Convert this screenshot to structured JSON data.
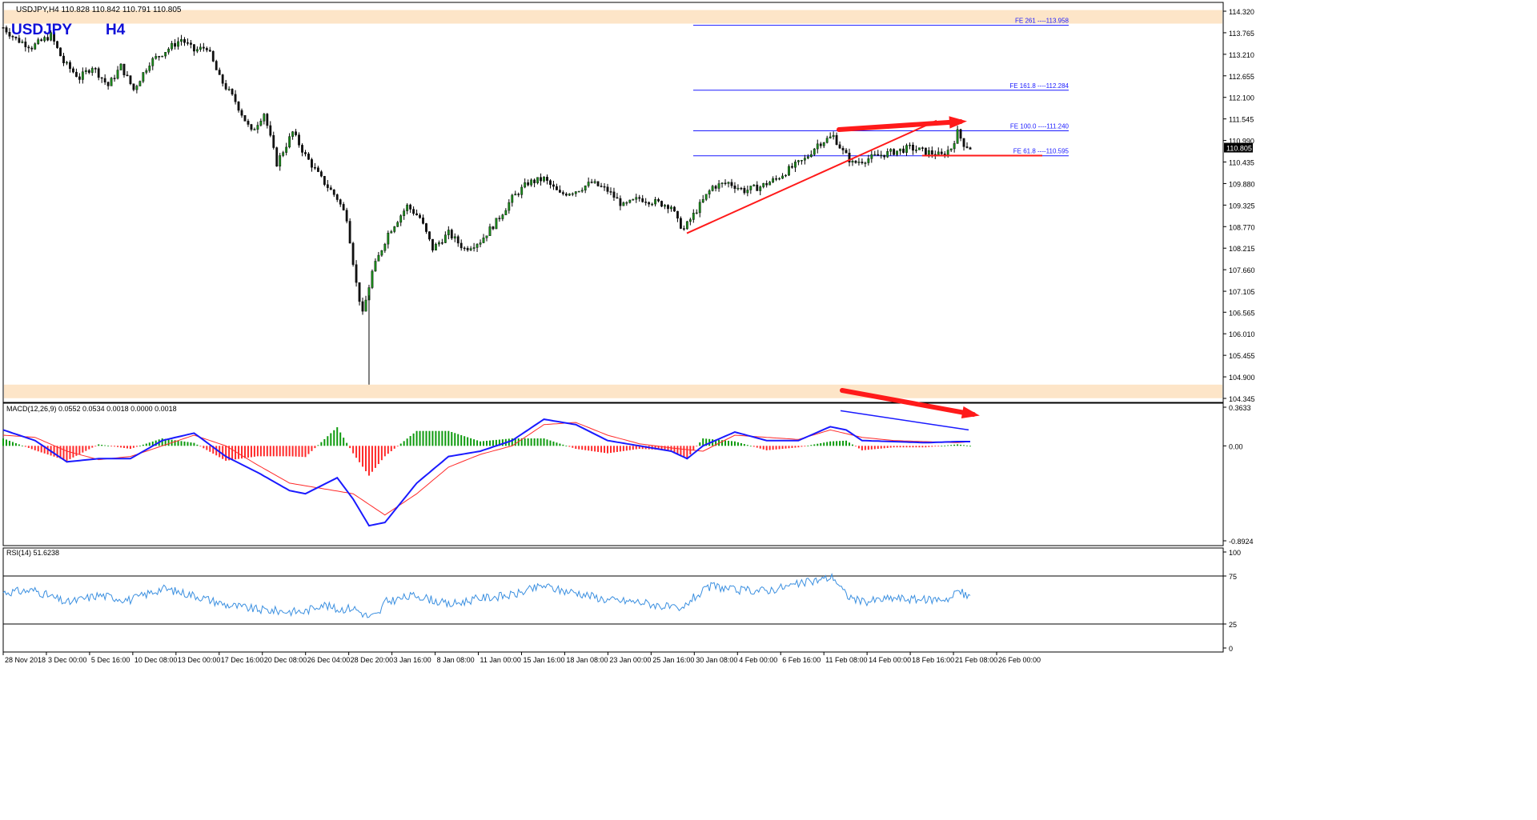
{
  "header": {
    "info": "USDJPY,H4  110.828 110.842 110.791 110.805",
    "symbol": "USDJPY",
    "timeframe": "H4"
  },
  "colors": {
    "bull": "#1a8a1a",
    "bear": "#111111",
    "fe_line": "#1a1aff",
    "red": "#ff1a1a",
    "macd_line": "#1a1aff",
    "signal_line": "#ff2a2a",
    "hist_pos": "#0d9a0d",
    "hist_neg": "#ff2a2a",
    "rsi_line": "#3a8fe0",
    "highlight": "#fde5c8"
  },
  "chart_data": [
    {
      "type": "candlestick",
      "price_axis_ticks": [
        "114.320",
        "113.765",
        "113.210",
        "112.655",
        "112.100",
        "111.545",
        "110.990",
        "110.435",
        "109.880",
        "109.325",
        "108.770",
        "108.215",
        "107.660",
        "107.105",
        "106.565",
        "106.010",
        "105.455",
        "104.900",
        "104.345"
      ],
      "ylim": [
        104.345,
        114.32
      ],
      "current_price": "110.805",
      "time_axis_labels": [
        "28 Nov 2018",
        "3 Dec 00:00",
        "5 Dec 16:00",
        "10 Dec 08:00",
        "13 Dec 00:00",
        "17 Dec 16:00",
        "20 Dec 08:00",
        "26 Dec 04:00",
        "28 Dec 20:00",
        "3 Jan 16:00",
        "8 Jan 08:00",
        "11 Jan 00:00",
        "15 Jan 16:00",
        "18 Jan 08:00",
        "23 Jan 00:00",
        "25 Jan 16:00",
        "30 Jan 08:00",
        "4 Feb 00:00",
        "6 Feb 16:00",
        "11 Feb 08:00",
        "14 Feb 00:00",
        "18 Feb 16:00",
        "21 Feb 08:00",
        "26 Feb 00:00"
      ],
      "path_points": [
        [
          0,
          113.9
        ],
        [
          8,
          113.6
        ],
        [
          18,
          113.4
        ],
        [
          30,
          113.7
        ],
        [
          38,
          113.0
        ],
        [
          48,
          112.6
        ],
        [
          56,
          112.9
        ],
        [
          66,
          112.4
        ],
        [
          74,
          112.9
        ],
        [
          82,
          112.3
        ],
        [
          92,
          113.0
        ],
        [
          102,
          113.3
        ],
        [
          112,
          113.6
        ],
        [
          120,
          113.3
        ],
        [
          128,
          113.4
        ],
        [
          136,
          112.6
        ],
        [
          146,
          112.0
        ],
        [
          156,
          111.2
        ],
        [
          164,
          111.7
        ],
        [
          172,
          110.4
        ],
        [
          182,
          111.2
        ],
        [
          190,
          110.6
        ],
        [
          200,
          110.0
        ],
        [
          210,
          109.5
        ],
        [
          216,
          109.0
        ],
        [
          222,
          107.3
        ],
        [
          226,
          106.5
        ],
        [
          232,
          107.6
        ],
        [
          242,
          108.6
        ],
        [
          254,
          109.3
        ],
        [
          262,
          109.0
        ],
        [
          270,
          108.2
        ],
        [
          280,
          108.6
        ],
        [
          290,
          108.2
        ],
        [
          300,
          108.4
        ],
        [
          310,
          108.9
        ],
        [
          320,
          109.5
        ],
        [
          330,
          109.9
        ],
        [
          340,
          110.0
        ],
        [
          350,
          109.6
        ],
        [
          360,
          109.7
        ],
        [
          370,
          109.9
        ],
        [
          380,
          109.7
        ],
        [
          390,
          109.3
        ],
        [
          400,
          109.5
        ],
        [
          410,
          109.4
        ],
        [
          420,
          109.3
        ],
        [
          424,
          108.9
        ],
        [
          428,
          108.7
        ],
        [
          436,
          109.2
        ],
        [
          446,
          109.8
        ],
        [
          456,
          109.9
        ],
        [
          466,
          109.7
        ],
        [
          476,
          109.8
        ],
        [
          486,
          110.0
        ],
        [
          496,
          110.3
        ],
        [
          504,
          110.5
        ],
        [
          512,
          110.9
        ],
        [
          522,
          111.1
        ],
        [
          528,
          110.7
        ],
        [
          534,
          110.4
        ],
        [
          542,
          110.5
        ],
        [
          550,
          110.6
        ],
        [
          560,
          110.7
        ],
        [
          570,
          110.8
        ],
        [
          580,
          110.7
        ],
        [
          590,
          110.6
        ],
        [
          596,
          110.8
        ],
        [
          600,
          111.2
        ],
        [
          604,
          110.9
        ],
        [
          608,
          110.8
        ]
      ],
      "wicks": [
        [
          230,
          104.7,
          107.0
        ]
      ],
      "support_trendline": [
        [
          108.6,
          111.5
        ],
        [
          108.6,
          111.5
        ]
      ],
      "fibonacci_levels": [
        {
          "label": "FE 261 ----113.958",
          "value": 113.958
        },
        {
          "label": "FE 161.8 ----112.284",
          "value": 112.284
        },
        {
          "label": "FE 100.0 ----111.240",
          "value": 111.24
        },
        {
          "label": "FE 61.8 ----110.595",
          "value": 110.595
        }
      ],
      "highlight_zones": [
        [
          114.0,
          114.35
        ],
        [
          104.35,
          104.7
        ]
      ]
    },
    {
      "type": "line",
      "title": "MACD(12,26,9) 0.0552 0.0534 0.0018 0.0000 0.0018",
      "axis_ticks": [
        "0.3633",
        "0.00",
        "-0.8924"
      ],
      "ylim": [
        -0.8924,
        0.3633
      ],
      "macd_points": [
        [
          0,
          0.15
        ],
        [
          20,
          0.05
        ],
        [
          40,
          -0.15
        ],
        [
          60,
          -0.12
        ],
        [
          80,
          -0.12
        ],
        [
          100,
          0.05
        ],
        [
          120,
          0.12
        ],
        [
          140,
          -0.1
        ],
        [
          160,
          -0.25
        ],
        [
          180,
          -0.42
        ],
        [
          190,
          -0.45
        ],
        [
          210,
          -0.3
        ],
        [
          220,
          -0.5
        ],
        [
          230,
          -0.75
        ],
        [
          240,
          -0.72
        ],
        [
          260,
          -0.35
        ],
        [
          280,
          -0.1
        ],
        [
          300,
          -0.05
        ],
        [
          320,
          0.05
        ],
        [
          340,
          0.25
        ],
        [
          360,
          0.2
        ],
        [
          380,
          0.05
        ],
        [
          400,
          0.0
        ],
        [
          420,
          -0.05
        ],
        [
          430,
          -0.12
        ],
        [
          440,
          0.0
        ],
        [
          460,
          0.13
        ],
        [
          480,
          0.05
        ],
        [
          500,
          0.05
        ],
        [
          520,
          0.18
        ],
        [
          530,
          0.15
        ],
        [
          540,
          0.05
        ],
        [
          560,
          0.04
        ],
        [
          580,
          0.03
        ],
        [
          600,
          0.04
        ],
        [
          608,
          0.04
        ]
      ],
      "signal_points": [
        [
          0,
          0.1
        ],
        [
          20,
          0.08
        ],
        [
          40,
          -0.05
        ],
        [
          60,
          -0.13
        ],
        [
          80,
          -0.1
        ],
        [
          100,
          0.0
        ],
        [
          120,
          0.1
        ],
        [
          140,
          0.0
        ],
        [
          160,
          -0.18
        ],
        [
          180,
          -0.35
        ],
        [
          200,
          -0.4
        ],
        [
          220,
          -0.45
        ],
        [
          240,
          -0.65
        ],
        [
          260,
          -0.45
        ],
        [
          280,
          -0.2
        ],
        [
          300,
          -0.08
        ],
        [
          320,
          0.0
        ],
        [
          340,
          0.2
        ],
        [
          360,
          0.22
        ],
        [
          380,
          0.1
        ],
        [
          400,
          0.02
        ],
        [
          420,
          -0.02
        ],
        [
          440,
          -0.05
        ],
        [
          460,
          0.1
        ],
        [
          480,
          0.08
        ],
        [
          500,
          0.06
        ],
        [
          520,
          0.15
        ],
        [
          540,
          0.08
        ],
        [
          560,
          0.05
        ],
        [
          580,
          0.04
        ],
        [
          600,
          0.03
        ],
        [
          608,
          0.04
        ]
      ]
    },
    {
      "type": "line",
      "title": "RSI(14) 51.6238",
      "axis_ticks": [
        "100",
        "75",
        "25",
        "0"
      ],
      "ylim": [
        0,
        100
      ],
      "levels": [
        75,
        25
      ],
      "rsi_points": [
        [
          0,
          58
        ],
        [
          20,
          60
        ],
        [
          40,
          47
        ],
        [
          60,
          55
        ],
        [
          80,
          50
        ],
        [
          100,
          62
        ],
        [
          120,
          55
        ],
        [
          140,
          45
        ],
        [
          160,
          40
        ],
        [
          180,
          38
        ],
        [
          190,
          38
        ],
        [
          200,
          46
        ],
        [
          210,
          40
        ],
        [
          220,
          42
        ],
        [
          230,
          32
        ],
        [
          236,
          35
        ],
        [
          240,
          48
        ],
        [
          260,
          55
        ],
        [
          280,
          45
        ],
        [
          300,
          52
        ],
        [
          320,
          55
        ],
        [
          340,
          65
        ],
        [
          350,
          60
        ],
        [
          360,
          58
        ],
        [
          380,
          50
        ],
        [
          400,
          48
        ],
        [
          420,
          42
        ],
        [
          426,
          38
        ],
        [
          432,
          50
        ],
        [
          446,
          65
        ],
        [
          460,
          60
        ],
        [
          480,
          60
        ],
        [
          496,
          65
        ],
        [
          510,
          70
        ],
        [
          522,
          74
        ],
        [
          530,
          55
        ],
        [
          540,
          48
        ],
        [
          560,
          52
        ],
        [
          580,
          50
        ],
        [
          596,
          52
        ],
        [
          600,
          60
        ],
        [
          608,
          52
        ]
      ]
    }
  ],
  "annotations": {
    "red_arrow_top": "price higher high",
    "red_arrow_macd": "macd lower high"
  }
}
